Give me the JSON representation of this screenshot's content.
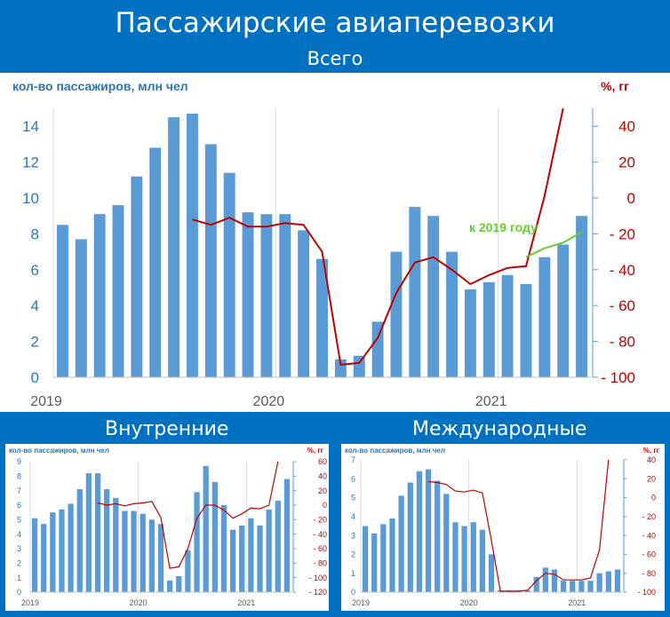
{
  "title": "Пассажирские авиаперевозки",
  "sections": {
    "total": "Всего",
    "domestic": "Внутренние",
    "international": "Международные"
  },
  "colors": {
    "bars": "#5b9bd5",
    "yoy_line": "#c00000",
    "vs2019_line": "#66cc33",
    "left_axis_text": "#2e75b6",
    "right_axis_text": "#c00000"
  },
  "chart_data": [
    {
      "name": "Всего",
      "type": "bar",
      "left_unit": "кол-во пассажиров, млн чел",
      "right_unit": "%, гг",
      "x_labels": [
        "2019",
        "2020",
        "2021"
      ],
      "ylim": [
        0,
        15
      ],
      "yticks": [
        0,
        2,
        4,
        6,
        8,
        10,
        12,
        14
      ],
      "y2lim": [
        -100,
        50
      ],
      "y2ticks": [
        -100,
        -80,
        -60,
        -40,
        -20,
        0,
        20,
        40
      ],
      "values": [
        8.5,
        7.7,
        9.1,
        9.6,
        11.2,
        12.8,
        14.5,
        14.7,
        13.0,
        11.4,
        9.2,
        9.1,
        9.1,
        8.2,
        6.6,
        1.0,
        1.2,
        3.1,
        7.0,
        9.5,
        9.0,
        7.0,
        4.9,
        5.3,
        5.7,
        5.2,
        6.7,
        7.4,
        9.0
      ],
      "yoy_change": [
        null,
        null,
        null,
        null,
        null,
        null,
        null,
        -12,
        -15,
        -11,
        -16,
        -16,
        -14,
        -15,
        -30,
        -93,
        -92,
        -78,
        -53,
        -36,
        -33,
        -40,
        -48,
        -43,
        -39,
        -38,
        1,
        50,
        null
      ],
      "vs_2019_label": "к 2019 году",
      "vs_2019": [
        null,
        null,
        null,
        null,
        null,
        null,
        null,
        null,
        null,
        null,
        null,
        null,
        null,
        null,
        null,
        null,
        null,
        null,
        null,
        null,
        null,
        null,
        null,
        null,
        null,
        -33,
        -28,
        -25,
        -19
      ]
    },
    {
      "name": "Внутренние",
      "type": "bar",
      "left_unit": "кол-во пассажиров, млн чел",
      "right_unit": "%, гг",
      "x_labels": [
        "2019",
        "2020",
        "2021"
      ],
      "ylim": [
        0,
        9
      ],
      "yticks": [
        0,
        1,
        2,
        3,
        4,
        5,
        6,
        7,
        8,
        9
      ],
      "y2lim": [
        -120,
        60
      ],
      "y2ticks": [
        -120,
        -100,
        -80,
        -60,
        -40,
        -20,
        0,
        20,
        40,
        60
      ],
      "values": [
        5.1,
        4.7,
        5.5,
        5.7,
        6.1,
        7.1,
        8.2,
        8.2,
        7.1,
        6.5,
        5.6,
        5.6,
        5.4,
        5.0,
        4.7,
        0.8,
        1.1,
        2.9,
        6.9,
        8.7,
        7.6,
        6.0,
        4.3,
        4.6,
        5.1,
        4.6,
        5.7,
        6.3,
        7.8
      ],
      "yoy_change": [
        null,
        null,
        null,
        null,
        null,
        null,
        null,
        3,
        0,
        2,
        -1,
        2,
        3,
        5,
        -17,
        -87,
        -85,
        -60,
        -18,
        0,
        0,
        -7,
        -18,
        -12,
        -4,
        -5,
        0,
        60,
        null
      ]
    },
    {
      "name": "Международные",
      "type": "bar",
      "left_unit": "кол-во пассажиров, млн чел",
      "right_unit": "%, гг",
      "x_labels": [
        "2019",
        "2020",
        "2021"
      ],
      "ylim": [
        0,
        7
      ],
      "yticks": [
        0,
        1,
        2,
        3,
        4,
        5,
        6,
        7
      ],
      "y2lim": [
        -100,
        40
      ],
      "y2ticks": [
        -100,
        -80,
        -60,
        -40,
        -20,
        0,
        20,
        40
      ],
      "values": [
        3.5,
        3.1,
        3.6,
        3.9,
        5.1,
        5.8,
        6.4,
        6.5,
        5.9,
        5.2,
        3.7,
        3.5,
        3.7,
        3.3,
        2.0,
        0.1,
        0.1,
        0.1,
        0.1,
        0.8,
        1.3,
        1.2,
        0.6,
        0.6,
        0.6,
        0.6,
        1.0,
        1.1,
        1.2
      ],
      "yoy_change": [
        null,
        null,
        null,
        null,
        null,
        null,
        null,
        17,
        16,
        14,
        7,
        6,
        8,
        5,
        -45,
        -99,
        -99,
        -99,
        -98,
        -88,
        -80,
        -81,
        -87,
        -87,
        -87,
        -85,
        -55,
        40,
        null
      ]
    }
  ]
}
